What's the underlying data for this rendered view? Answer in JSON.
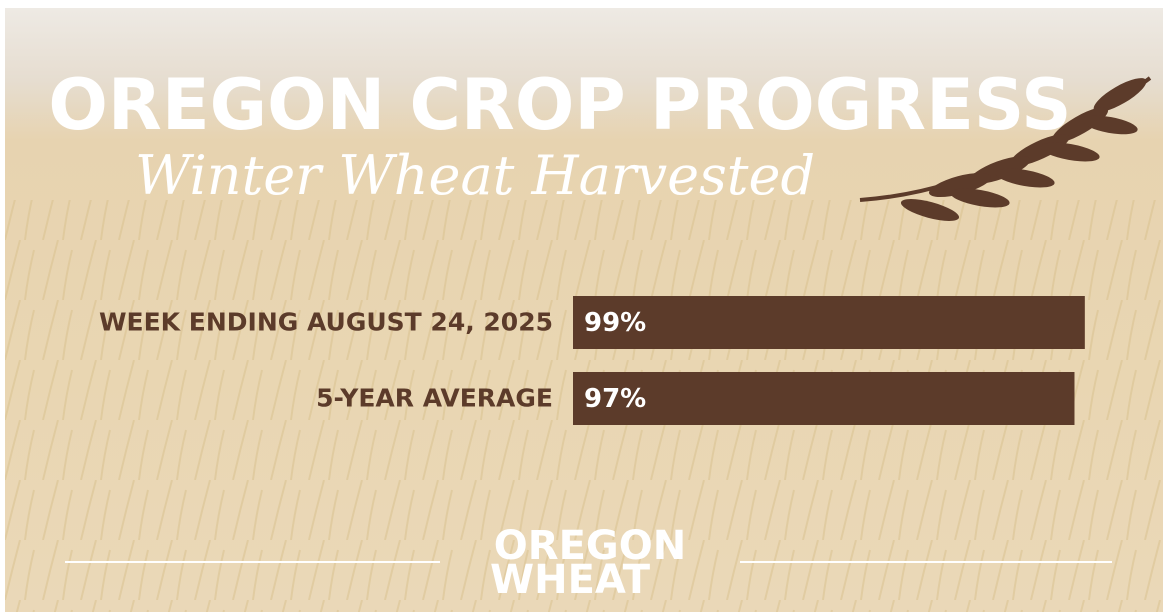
{
  "chart_data": {
    "type": "bar",
    "orientation": "horizontal",
    "title": "OREGON CROP PROGRESS",
    "subtitle": "Winter Wheat Harvested",
    "categories": [
      "WEEK ENDING AUGUST 24, 2025",
      "5-YEAR AVERAGE"
    ],
    "values": [
      99,
      97
    ],
    "value_labels": [
      "99%",
      "97%"
    ],
    "color": "#5c3b2a",
    "xlim": [
      0,
      100
    ]
  },
  "logo": {
    "line1": "OREGON",
    "line2": "WHEAT"
  }
}
